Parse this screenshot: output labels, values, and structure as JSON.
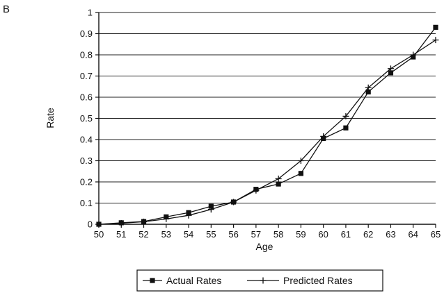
{
  "panel_label": "B",
  "chart_data": {
    "type": "line",
    "title": "",
    "xlabel": "Age",
    "ylabel": "Rate",
    "x": [
      50,
      51,
      52,
      53,
      54,
      55,
      56,
      57,
      58,
      59,
      60,
      61,
      62,
      63,
      64,
      65
    ],
    "xlim": [
      50,
      65
    ],
    "ylim": [
      0,
      1
    ],
    "yticks": [
      "0",
      "0.1",
      "0.2",
      "0.3",
      "0.4",
      "0.5",
      "0.6",
      "0.7",
      "0.8",
      "0.9",
      "1"
    ],
    "xticks": [
      "50",
      "51",
      "52",
      "53",
      "54",
      "55",
      "56",
      "57",
      "58",
      "59",
      "60",
      "61",
      "62",
      "63",
      "64",
      "65"
    ],
    "grid": "horizontal",
    "legend_position": "bottom-center",
    "series": [
      {
        "name": "Actual Rates",
        "marker": "square",
        "values": [
          0.0,
          0.007,
          0.013,
          0.035,
          0.055,
          0.085,
          0.105,
          0.165,
          0.19,
          0.24,
          0.405,
          0.455,
          0.625,
          0.715,
          0.79,
          0.93
        ]
      },
      {
        "name": "Predicted Rates",
        "marker": "plus",
        "values": [
          0.0,
          0.005,
          0.012,
          0.025,
          0.042,
          0.07,
          0.105,
          0.16,
          0.215,
          0.3,
          0.415,
          0.51,
          0.645,
          0.735,
          0.8,
          0.87
        ]
      }
    ]
  }
}
